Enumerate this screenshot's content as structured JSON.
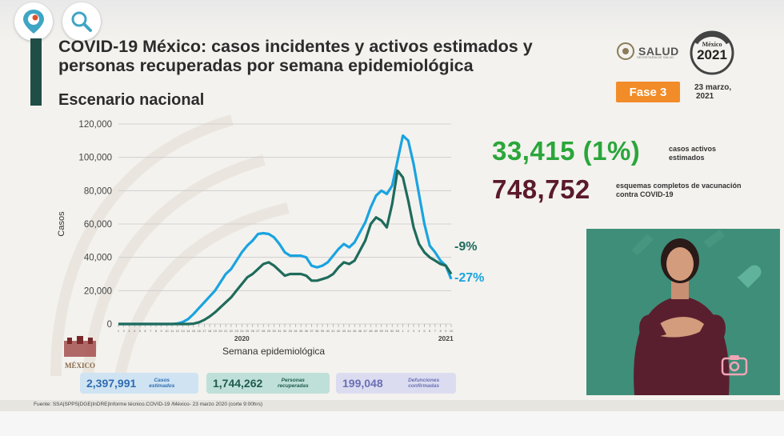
{
  "header": {
    "title": "COVID-19 México: casos incidentes y activos estimados y personas recuperadas por semana epidemiológica",
    "subtitle": "Escenario nacional",
    "brand": "SALUD",
    "brand_sub": "SECRETARÍA DE SALUD",
    "logo_year": "2021",
    "logo_text": "México",
    "phase": "Fase 3",
    "date_line1": "23 marzo,",
    "date_line2": "2021"
  },
  "kpis": {
    "active_value": "33,415 (1%)",
    "active_label": "casos activos estimados",
    "vaccine_value": "748,752",
    "vaccine_label": "esquemas completos de vacunación contra COVID-19"
  },
  "stats": [
    {
      "value": "2,397,991",
      "label": "Casos estimados",
      "color": "#2f6db0",
      "bg": "#cfe3f3"
    },
    {
      "value": "1,744,262",
      "label": "Personas recuperadas",
      "color": "#1f5a4e",
      "bg": "#bfe0d8"
    },
    {
      "value": "199,048",
      "label": "Defunciones confirmadas",
      "color": "#6b6fb3",
      "bg": "#dcdcf1"
    }
  ],
  "source": "Fuente: SSA|SPPS|DGE|InDRE|Informe técnico.COVID-19 /México- 23 marzo 2020 (corte 9:00hrs)",
  "bottom_logo": "MÉXICO",
  "colors": {
    "estimated": "#1aa3e0",
    "recovered": "#1f6b5c",
    "accent": "#f28c28"
  },
  "icons": {
    "app": "periscope-icon",
    "search": "search-icon",
    "camera": "camera-icon"
  },
  "chart_data": {
    "type": "line",
    "xlabel": "Semana epidemiológica",
    "ylabel": "Casos",
    "ylim": [
      0,
      120000
    ],
    "yticks": [
      "0",
      "20,000",
      "40,000",
      "60,000",
      "80,000",
      "100,000",
      "120,000"
    ],
    "year_labels": [
      {
        "label": "2020",
        "at_index": 23
      },
      {
        "label": "2021",
        "at_index": 61
      }
    ],
    "end_labels": [
      {
        "text": "-9%",
        "color": "#1f6b5c"
      },
      {
        "text": "-27%",
        "color": "#1aa3e0"
      }
    ],
    "series": [
      {
        "values": [
          0,
          0,
          0,
          0,
          0,
          0,
          0,
          0,
          0,
          0,
          0,
          300,
          1200,
          3000,
          6000,
          9500,
          13000,
          16500,
          20000,
          25000,
          30000,
          33000,
          38000,
          43000,
          47000,
          50000,
          54000,
          54500,
          54000,
          52000,
          48000,
          43000,
          41000,
          41000,
          41000,
          40000,
          35000,
          34000,
          35000,
          37000,
          41000,
          45000,
          48000,
          46000,
          49000,
          55000,
          61000,
          70000,
          77000,
          80000,
          78000,
          83000,
          98000,
          113000,
          110000,
          96000,
          78000,
          60000,
          47000,
          43000,
          38000,
          35000,
          27000
        ]
      },
      {
        "values": [
          0,
          0,
          0,
          0,
          0,
          0,
          0,
          0,
          0,
          0,
          0,
          0,
          0,
          0,
          200,
          1000,
          2500,
          4500,
          7000,
          10000,
          13000,
          16000,
          20000,
          24000,
          28000,
          30000,
          33000,
          36000,
          37000,
          35000,
          32000,
          29000,
          30000,
          30000,
          30000,
          29000,
          26000,
          26000,
          27000,
          28000,
          30000,
          34000,
          37000,
          36000,
          38000,
          44000,
          50000,
          60000,
          64000,
          62000,
          58000,
          72000,
          92000,
          88000,
          74000,
          58000,
          48000,
          43000,
          40000,
          38000,
          36000,
          35000,
          30000
        ]
      }
    ]
  }
}
